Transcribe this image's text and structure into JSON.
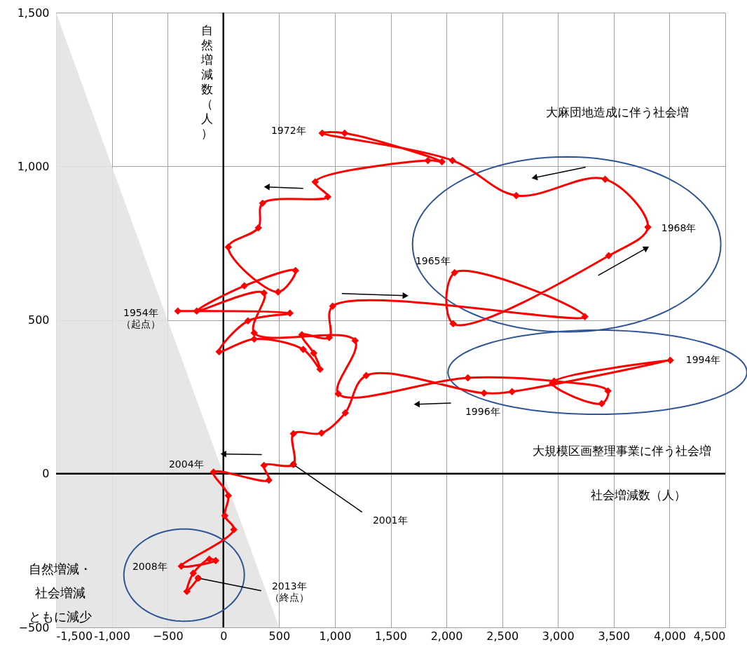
{
  "chart_data": {
    "type": "line",
    "xlabel": "社会増減数（人）",
    "ylabel": "自然増減数（人）",
    "xlim": [
      -1500,
      4500
    ],
    "ylim": [
      -500,
      1500
    ],
    "xticks": [
      {
        "value": -1500,
        "label": "-1,500"
      },
      {
        "value": -1000,
        "label": "-1,000"
      },
      -500,
      0,
      500,
      {
        "value": 1000,
        "label": "1,000"
      },
      {
        "value": 1500,
        "label": "1,500"
      },
      {
        "value": 2000,
        "label": "2,000"
      },
      {
        "value": 2500,
        "label": "2,500"
      },
      {
        "value": 3000,
        "label": "3,000"
      },
      {
        "value": 3500,
        "label": "3,500"
      },
      {
        "value": 4000,
        "label": "4,000"
      },
      {
        "value": 4500,
        "label": "4,500"
      }
    ],
    "yticks": [
      -500,
      0,
      500,
      {
        "value": 1000,
        "label": "1,000"
      },
      {
        "value": 1500,
        "label": "1,500"
      }
    ],
    "grid": true,
    "line_style": "solid",
    "series": [
      {
        "type": "area",
        "color": "#e3e3e3",
        "x": [
          -1500,
          500
        ],
        "values": [
          1500,
          -500
        ]
      },
      {
        "color": "#ff0000",
        "marker": "diamond",
        "x": [
          -408,
          597,
          220,
          -38,
          276,
          716,
          867,
          810,
          704,
          949,
          980,
          3241,
          2073,
          2060,
          3455,
          3806,
          3423,
          2626,
          2054,
          886,
          1087,
          1960,
          1834,
          823,
          936,
          352,
          314,
          44,
          490,
          647,
          188,
          -239,
          364,
          276,
          1181,
          1030,
          2192,
          2965,
          3448,
          3392,
          2950,
          4007,
          2588,
          2337,
          1281,
          1093,
          880,
          628,
          628,
          364,
          408,
          -88,
          44,
          13,
          94,
          -377,
          -69,
          -126,
          -270,
          -327,
          -226
        ],
        "values": [
          529,
          522,
          497,
          397,
          438,
          404,
          340,
          392,
          452,
          443,
          545,
          511,
          654,
          488,
          709,
          802,
          958,
          905,
          1019,
          1108,
          1108,
          1015,
          1019,
          949,
          901,
          880,
          800,
          737,
          591,
          661,
          611,
          529,
          588,
          458,
          433,
          260,
          312,
          301,
          269,
          228,
          295,
          369,
          267,
          262,
          319,
          198,
          132,
          130,
          30,
          27,
          -21,
          5,
          -71,
          -137,
          -182,
          -301,
          -283,
          -278,
          -324,
          -383,
          -340
        ]
      }
    ],
    "annotations": [
      {
        "text": "1954年（起点）",
        "x": -408,
        "y": 529
      },
      {
        "text": "1965年",
        "x": 2073,
        "y": 654
      },
      {
        "text": "1968年",
        "x": 3806,
        "y": 802
      },
      {
        "text": "1972年",
        "x": 886,
        "y": 1108
      },
      {
        "text": "1994年",
        "x": 4007,
        "y": 369
      },
      {
        "text": "1996年",
        "x": 2337,
        "y": 262
      },
      {
        "text": "2001年",
        "x": 628,
        "y": 30
      },
      {
        "text": "2004年",
        "x": -88,
        "y": 5
      },
      {
        "text": "2008年",
        "x": -377,
        "y": -301
      },
      {
        "text": "2013年（終点）",
        "x": -226,
        "y": -340
      },
      "大麻団地造成に伴う社会増",
      "大規模区画整理事業に伴う社会増",
      "自然増減・社会増減ともに減少"
    ]
  }
}
